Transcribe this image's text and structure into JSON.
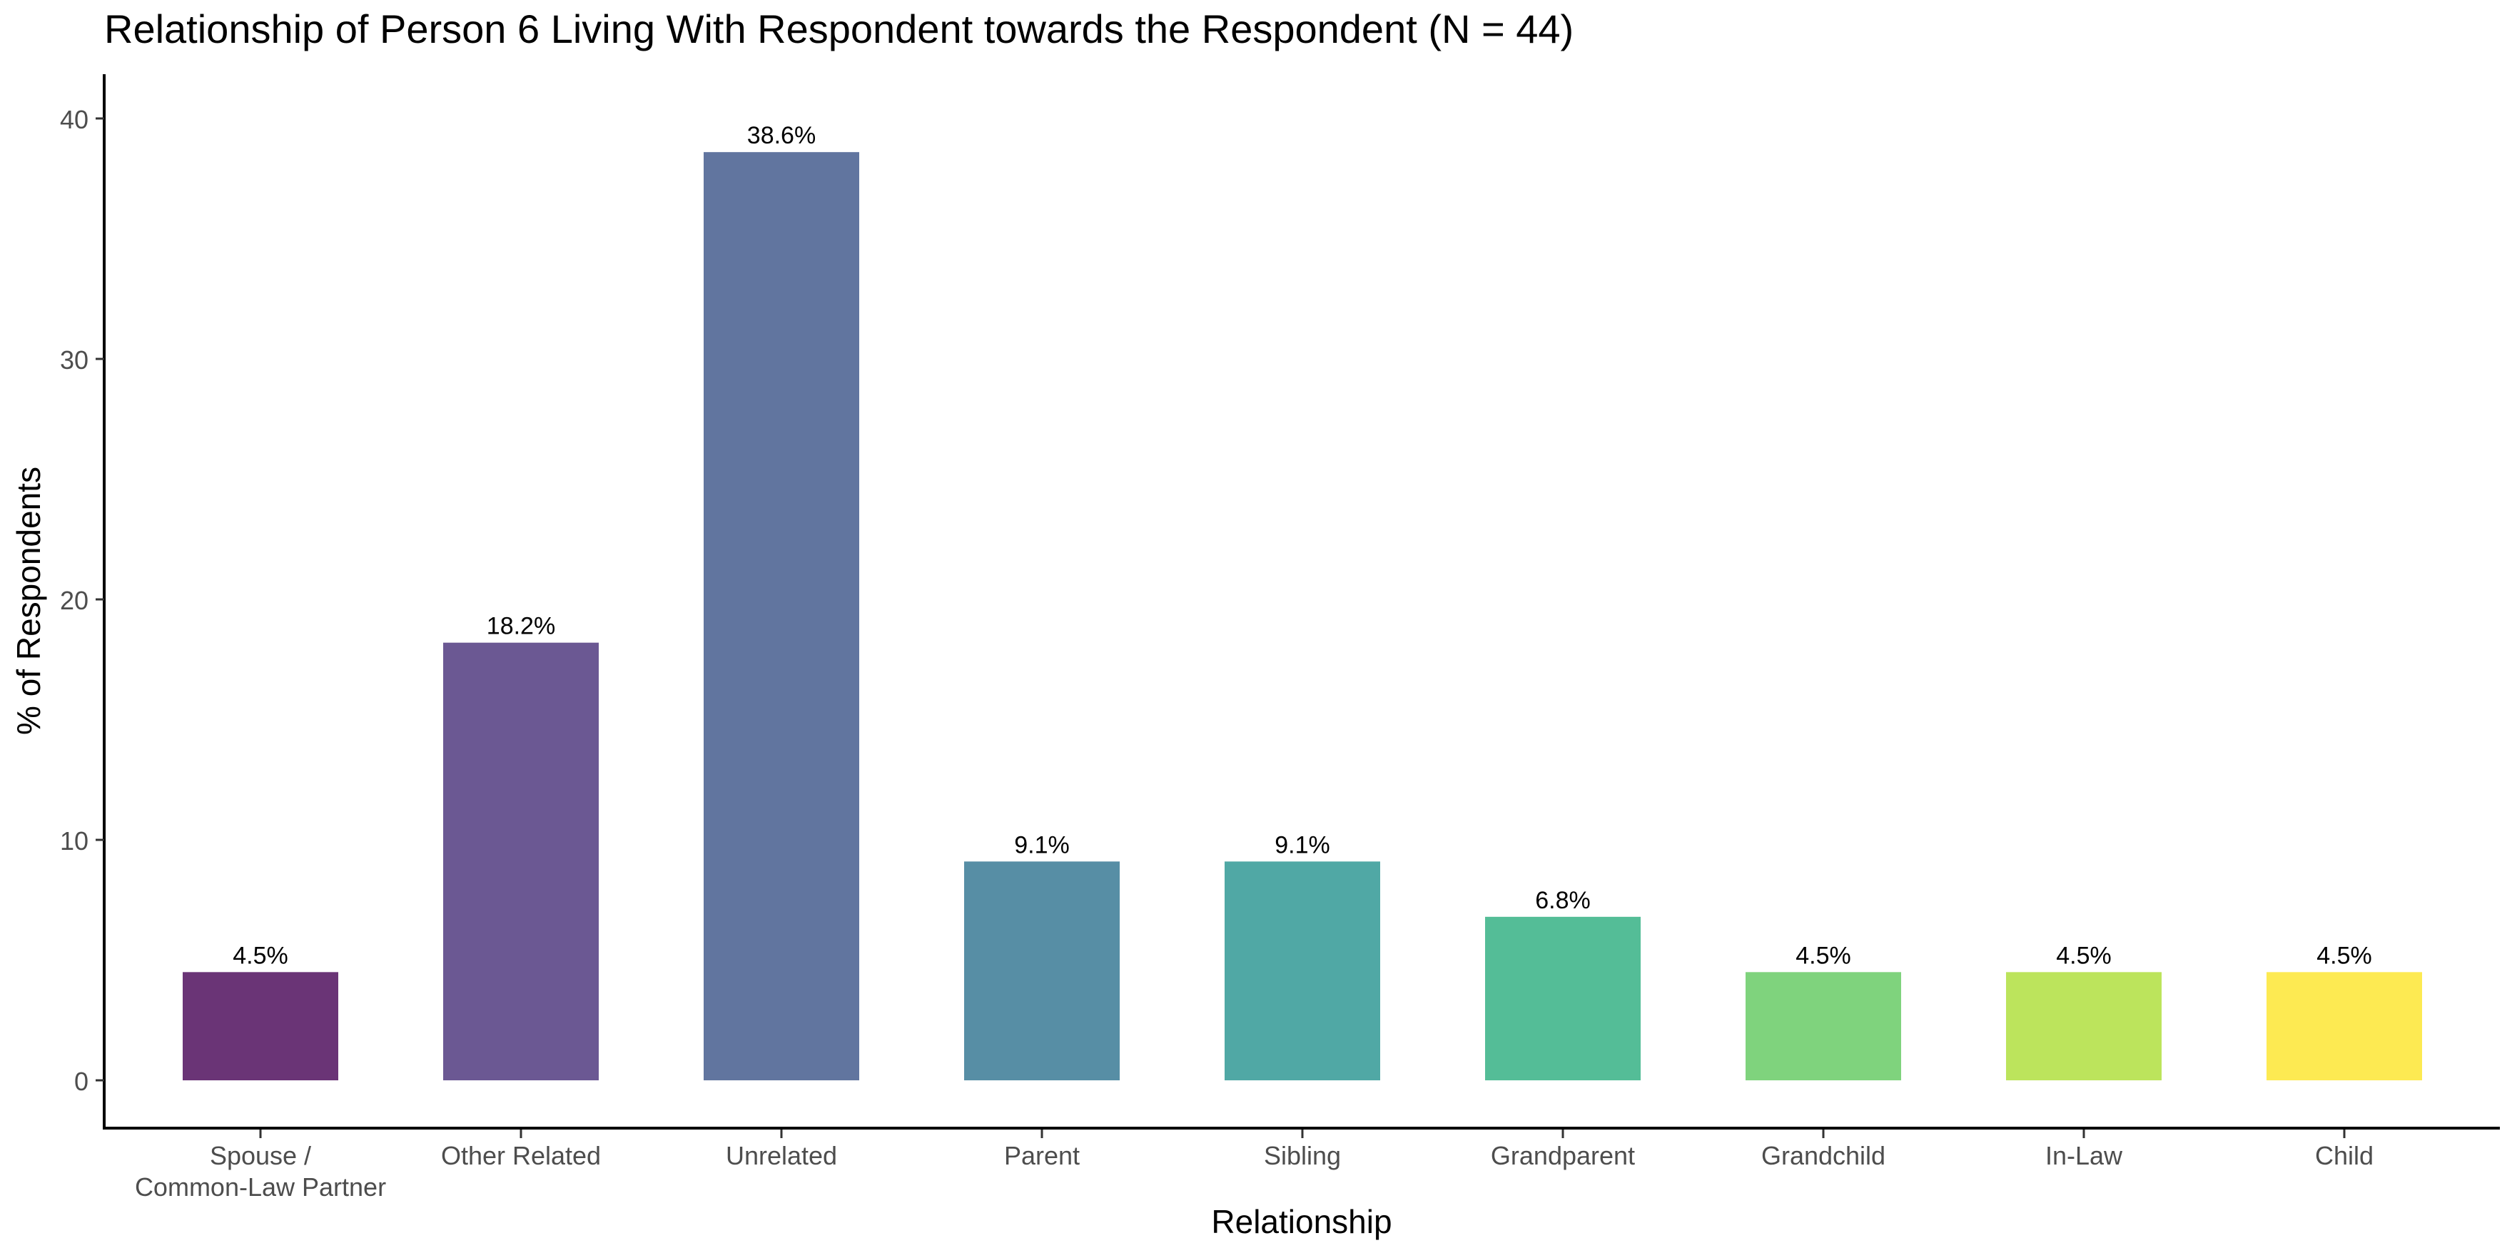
{
  "chart_data": {
    "type": "bar",
    "title": "Relationship of Person 6 Living With Respondent towards the Respondent (N = 44)",
    "xlabel": "Relationship",
    "ylabel": "% of Respondents",
    "categories": [
      [
        "Spouse /",
        "Common-Law Partner"
      ],
      [
        "Other Related"
      ],
      [
        "Unrelated"
      ],
      [
        "Parent"
      ],
      [
        "Sibling"
      ],
      [
        "Grandparent"
      ],
      [
        "Grandchild"
      ],
      [
        "In-Law"
      ],
      [
        "Child"
      ]
    ],
    "values": [
      4.5,
      18.2,
      38.6,
      9.1,
      9.1,
      6.8,
      4.5,
      4.5,
      4.5
    ],
    "value_labels": [
      "4.5%",
      "18.2%",
      "38.6%",
      "9.1%",
      "9.1%",
      "6.8%",
      "4.5%",
      "4.5%",
      "4.5%"
    ],
    "colors": [
      "#6a3476",
      "#6b5893",
      "#61759f",
      "#578ea5",
      "#50a8a5",
      "#54bd97",
      "#7fd37d",
      "#bce45c",
      "#fdea52"
    ],
    "ylim": [
      0,
      40
    ],
    "yticks": [
      0,
      10,
      20,
      30,
      40
    ],
    "grid": false,
    "legend": "none"
  }
}
